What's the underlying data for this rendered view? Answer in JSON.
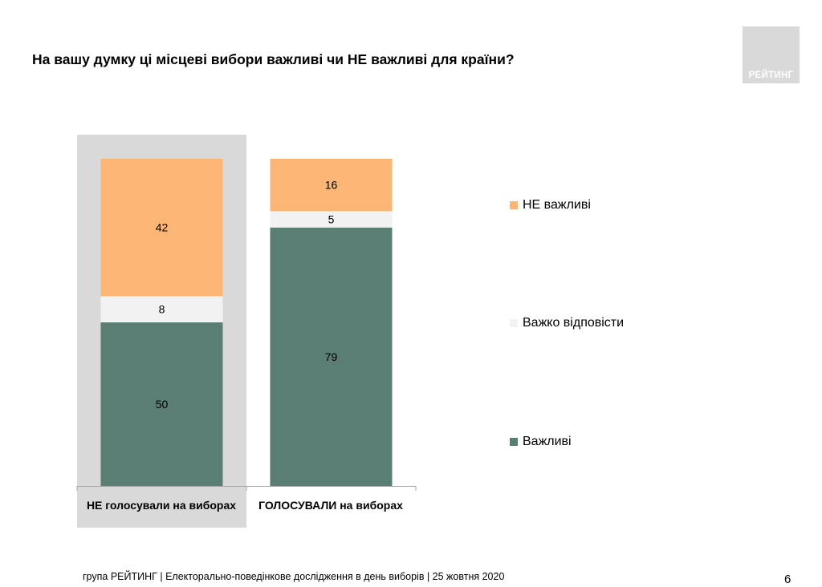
{
  "title": "На вашу думку ці місцеві вибори важливі чи НЕ важливі для країни?",
  "logo_text": "РЕЙТИНГ",
  "chart_data": {
    "type": "bar",
    "stacked": true,
    "title": "На вашу думку ці місцеві вибори важливі чи НЕ важливі для країни?",
    "categories": [
      "НЕ голосували на виборах",
      "ГОЛОСУВАЛИ на виборах"
    ],
    "highlighted_category": "НЕ голосували на виборах",
    "series": [
      {
        "name": "Важливі",
        "values": [
          50,
          79
        ],
        "color": "#5a7d74",
        "label_color": "#000000"
      },
      {
        "name": "Важко відповісти",
        "values": [
          8,
          5
        ],
        "color": "#f2f2f2",
        "label_color": "#000000"
      },
      {
        "name": "НЕ важливі",
        "values": [
          42,
          16
        ],
        "color": "#fbb574",
        "label_color": "#000000"
      }
    ],
    "ylim": [
      0,
      100
    ],
    "legend_position": "right",
    "grid": false,
    "xlabel": "",
    "ylabel": ""
  },
  "legend": [
    {
      "label": "НЕ важливі",
      "color": "#fbb574"
    },
    {
      "label": "Важко відповісти",
      "color": "#f2f2f2"
    },
    {
      "label": "Важливі",
      "color": "#5a7d74"
    }
  ],
  "footer": "група РЕЙТИНГ | Електорально-поведінкове дослідження в день виборів | 25 жовтня 2020",
  "page_number": "6",
  "colors": {
    "highlight_bg": "#d9d9d9",
    "axis": "#a6a6a6"
  }
}
